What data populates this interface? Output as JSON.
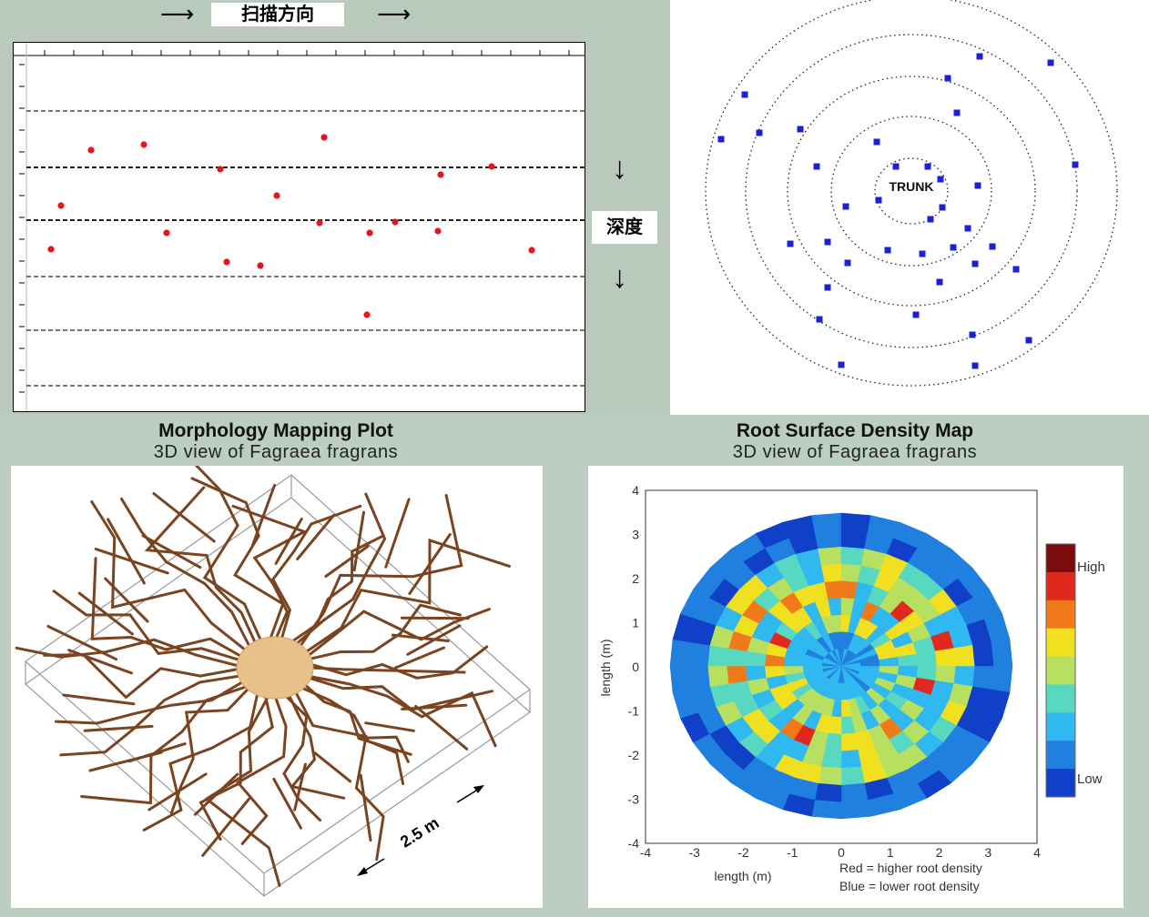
{
  "scan": {
    "title": "扫描方向",
    "depth_label": "深度",
    "arrow_right": "⟶",
    "arrow_down": "↓"
  },
  "polar": {
    "trunk_label": "TRUNK"
  },
  "morphology": {
    "title": "Morphology Mapping Plot",
    "subtitle": "3D view of Fagraea fragrans",
    "scale_label": "2.5 m"
  },
  "density": {
    "title": "Root Surface Density Map",
    "subtitle": "3D view of Fagraea fragrans",
    "xlabel": "length (m)",
    "ylabel": "length (m)",
    "xticks": [
      "-4",
      "-3",
      "-2",
      "-1",
      "0",
      "1",
      "2",
      "3",
      "4"
    ],
    "yticks": [
      "4",
      "3",
      "2",
      "1",
      "0",
      "-1",
      "-2",
      "-3",
      "-4"
    ],
    "colorbar_high": "High",
    "colorbar_low": "Low",
    "note_red": "Red = higher root density",
    "note_blue": "Blue = lower root density",
    "colors": [
      "#7a0c0c",
      "#e0281c",
      "#f07a1a",
      "#f0e020",
      "#b8e060",
      "#58d8c0",
      "#30b8f0",
      "#2080e0",
      "#1040c8"
    ]
  }
}
